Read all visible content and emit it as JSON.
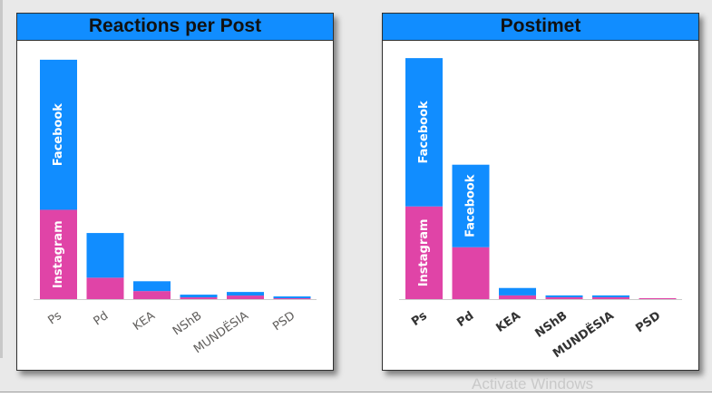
{
  "colors": {
    "facebook": "#118DFF",
    "instagram": "#E044A7",
    "header": "#118DFF",
    "axis": "#cccccc"
  },
  "watermark": "Activate Windows",
  "charts": [
    {
      "title": "Reactions per Post",
      "bold_ticks": false
    },
    {
      "title": "Postimet",
      "bold_ticks": true
    }
  ],
  "chart_data": [
    {
      "type": "bar",
      "stacked": true,
      "title": "Reactions per Post",
      "categories": [
        "Ps",
        "Pd",
        "KEA",
        "NShB",
        "MUNDËSIA",
        "PSD"
      ],
      "series": [
        {
          "name": "Instagram",
          "values": [
            100,
            24,
            9,
            2,
            4,
            1
          ]
        },
        {
          "name": "Facebook",
          "values": [
            168,
            50,
            11,
            3,
            4,
            2
          ]
        }
      ],
      "segment_labels": [
        {
          "category": "Ps",
          "series": "Instagram",
          "text": "Instagram"
        },
        {
          "category": "Ps",
          "series": "Facebook",
          "text": "Facebook"
        }
      ],
      "ylim": [
        0,
        275
      ],
      "grid": false,
      "legend": "none"
    },
    {
      "type": "bar",
      "stacked": true,
      "title": "Postimet",
      "categories": [
        "Ps",
        "Pd",
        "KEA",
        "NShB",
        "MUNDËSIA",
        "PSD"
      ],
      "series": [
        {
          "name": "Instagram",
          "values": [
            100,
            56,
            4,
            2,
            2,
            1
          ]
        },
        {
          "name": "Facebook",
          "values": [
            160,
            89,
            8,
            2,
            2,
            0
          ]
        }
      ],
      "segment_labels": [
        {
          "category": "Ps",
          "series": "Instagram",
          "text": "Instagram"
        },
        {
          "category": "Ps",
          "series": "Facebook",
          "text": "Facebook"
        },
        {
          "category": "Pd",
          "series": "Facebook",
          "text": "Facebook"
        }
      ],
      "ylim": [
        0,
        265
      ],
      "grid": false,
      "legend": "none"
    }
  ]
}
